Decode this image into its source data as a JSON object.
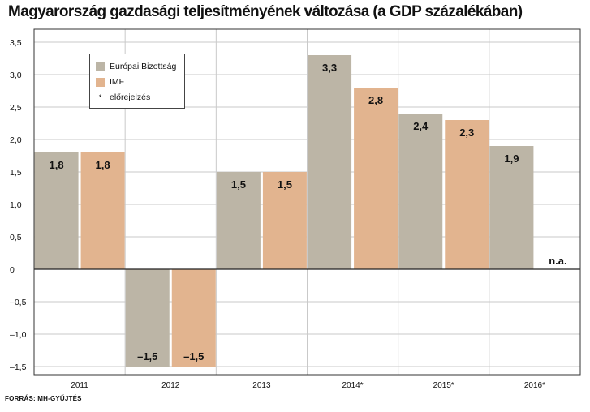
{
  "title": "Magyarország gazdasági teljesítményének változása (a GDP százalékában)",
  "source": "FORRÁS: MH-GYŰJTÉS",
  "legend": {
    "items": [
      {
        "label": "Európai Bizottság",
        "color": "#bcb5a6"
      },
      {
        "label": "IMF",
        "color": "#e2b48f"
      }
    ],
    "note_marker": "*",
    "note_label": "előrejelzés"
  },
  "colors": {
    "grid": "#c9c9c9",
    "axis": "#222222",
    "border": "#333333",
    "text": "#111111"
  },
  "chart_data": {
    "type": "bar",
    "categories": [
      "2011",
      "2012",
      "2013",
      "2014*",
      "2015*",
      "2016*"
    ],
    "series": [
      {
        "name": "Európai Bizottság",
        "values": [
          1.8,
          -1.5,
          1.5,
          3.3,
          2.4,
          1.9
        ],
        "labels": [
          "1,8",
          "–1,5",
          "1,5",
          "3,3",
          "2,4",
          "1,9"
        ]
      },
      {
        "name": "IMF",
        "values": [
          1.8,
          -1.5,
          1.5,
          2.8,
          2.3,
          null
        ],
        "labels": [
          "1,8",
          "–1,5",
          "1,5",
          "2,8",
          "2,3",
          "n.a."
        ]
      }
    ],
    "yticks": [
      3.5,
      3.0,
      2.5,
      2.0,
      1.5,
      1.0,
      0.5,
      0,
      -0.5,
      -1.0,
      -1.5
    ],
    "ytick_labels": [
      "3,5",
      "3,0",
      "2,5",
      "2,0",
      "1,5",
      "1,0",
      "0,5",
      "0",
      "–0,5",
      "–1,0",
      "–1,5"
    ],
    "ylim": [
      -1.5,
      3.5
    ],
    "grid": true,
    "legend_position": "top-left"
  }
}
